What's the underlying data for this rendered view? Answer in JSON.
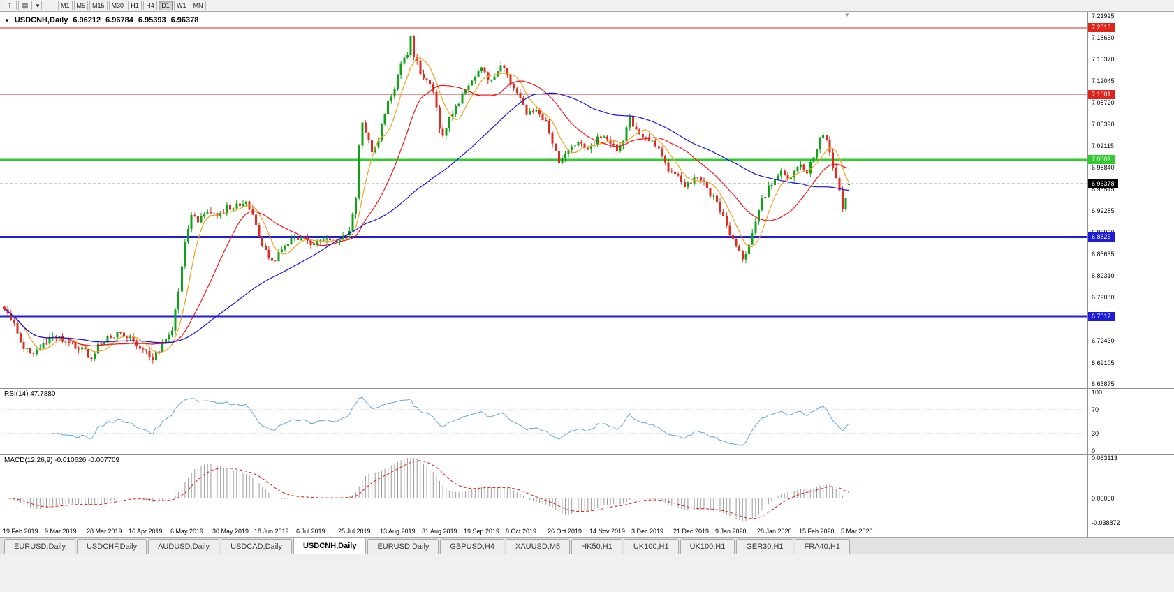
{
  "toolbar": {
    "t_button": "T",
    "mode_glyph": "▤",
    "dropdown_glyph": "▾",
    "timeframes": [
      "M1",
      "M5",
      "M15",
      "M30",
      "H1",
      "H4",
      "D1",
      "W1",
      "MN"
    ],
    "active_timeframe": "D1"
  },
  "chart": {
    "collapse_glyph": "▼",
    "shift_marker_glyph": "▼",
    "title": "USDCNH,Daily",
    "ohlc": {
      "open": "6.96212",
      "high": "6.96784",
      "low": "6.95393",
      "close": "6.96378"
    },
    "price_axis_labels": [
      "7.21925",
      "7.18660",
      "7.15370",
      "7.12045",
      "7.08720",
      "7.05390",
      "7.02115",
      "6.98840",
      "6.95515",
      "6.92285",
      "6.88960",
      "6.85635",
      "6.82310",
      "6.79080",
      "6.75755",
      "6.72430",
      "6.69105",
      "6.65875"
    ],
    "hlines": [
      {
        "price": 7.2013,
        "label": "7.2013",
        "color": "#df241b",
        "width": 1
      },
      {
        "price": 7.1001,
        "label": "7.1001",
        "color": "#df241b",
        "width": 1
      },
      {
        "price": 7.0002,
        "label": "7.0002",
        "color": "#2ecc2e",
        "width": 3
      },
      {
        "price": 6.8825,
        "label": "6.8825",
        "color": "#1d1dd8",
        "width": 3
      },
      {
        "price": 6.7617,
        "label": "6.7617",
        "color": "#1d1dd8",
        "width": 3
      }
    ],
    "current_price": {
      "value": 6.96378,
      "label": "6.96378",
      "color": "#000000"
    },
    "date_labels": [
      "19 Feb 2019",
      "9 Mar 2019",
      "28 Mar 2019",
      "16 Apr 2019",
      "6 May 2019",
      "30 May 2019",
      "18 Jun 2019",
      "6 Jul 2019",
      "25 Jul 2019",
      "13 Aug 2019",
      "31 Aug 2019",
      "19 Sep 2019",
      "8 Oct 2019",
      "26 Oct 2019",
      "14 Nov 2019",
      "3 Dec 2019",
      "21 Dec 2019",
      "9 Jan 2020",
      "28 Jan 2020",
      "15 Feb 2020",
      "5 Mar 2020"
    ]
  },
  "rsi": {
    "label": "RSI(14) 47.7880",
    "value": 47.788,
    "period": 14,
    "axis_labels": [
      "100",
      "70",
      "30",
      "0"
    ],
    "axis_values": [
      100,
      70,
      30,
      0
    ],
    "levels": [
      70,
      30
    ],
    "color": "#5aa7dc"
  },
  "macd": {
    "label": "MACD(12,26,9) -0.010626 -0.007709",
    "main_value": -0.010626,
    "signal_value": -0.007709,
    "fast": 12,
    "slow": 26,
    "signal": 9,
    "axis_max": {
      "label": "0.063113",
      "value": 0.063113
    },
    "axis_zero": {
      "label": "0.00000",
      "value": 0
    },
    "axis_min": {
      "label": "-0.038872",
      "value": -0.038872
    },
    "hist_color": "#9b9b9b",
    "signal_color": "#e01510"
  },
  "tabs": [
    "EURUSD,Daily",
    "USDCHF,Daily",
    "AUDUSD,Daily",
    "USDCAD,Daily",
    "USDCNH,Daily",
    "EURUSD,Daily",
    "GBPUSD,H4",
    "XAUUSD,M5",
    "HK50,H1",
    "UK100,H1",
    "UK100,H1",
    "GER30,H1",
    "FRA40,H1"
  ],
  "active_tab_index": 4,
  "chart_data": {
    "type": "candlestick",
    "symbol": "USDCNH",
    "timeframe": "Daily",
    "candles_total": 263,
    "price_axis_min": 6.65875,
    "price_axis_max": 7.21925,
    "final_ohlc": [
      6.96212,
      6.96784,
      6.95393,
      6.96378
    ],
    "close_path": [
      [
        0,
        6.776
      ],
      [
        3,
        6.748
      ],
      [
        6,
        6.715
      ],
      [
        9,
        6.703
      ],
      [
        12,
        6.722
      ],
      [
        16,
        6.732
      ],
      [
        20,
        6.72
      ],
      [
        24,
        6.712
      ],
      [
        27,
        6.698
      ],
      [
        29,
        6.716
      ],
      [
        32,
        6.73
      ],
      [
        36,
        6.734
      ],
      [
        40,
        6.726
      ],
      [
        43,
        6.712
      ],
      [
        46,
        6.697
      ],
      [
        49,
        6.718
      ],
      [
        52,
        6.742
      ],
      [
        54,
        6.8
      ],
      [
        56,
        6.872
      ],
      [
        58,
        6.915
      ],
      [
        60,
        6.908
      ],
      [
        63,
        6.922
      ],
      [
        66,
        6.912
      ],
      [
        69,
        6.927
      ],
      [
        72,
        6.93
      ],
      [
        75,
        6.941
      ],
      [
        77,
        6.915
      ],
      [
        80,
        6.872
      ],
      [
        83,
        6.843
      ],
      [
        86,
        6.862
      ],
      [
        89,
        6.878
      ],
      [
        92,
        6.88
      ],
      [
        95,
        6.872
      ],
      [
        98,
        6.878
      ],
      [
        101,
        6.882
      ],
      [
        104,
        6.879
      ],
      [
        107,
        6.89
      ],
      [
        109,
        6.947
      ],
      [
        110,
        7.02
      ],
      [
        111,
        7.058
      ],
      [
        112,
        7.045
      ],
      [
        114,
        7.008
      ],
      [
        116,
        7.03
      ],
      [
        117,
        7.058
      ],
      [
        119,
        7.088
      ],
      [
        121,
        7.11
      ],
      [
        123,
        7.148
      ],
      [
        125,
        7.163
      ],
      [
        126,
        7.185
      ],
      [
        127,
        7.16
      ],
      [
        129,
        7.135
      ],
      [
        131,
        7.12
      ],
      [
        133,
        7.105
      ],
      [
        135,
        7.052
      ],
      [
        136,
        7.038
      ],
      [
        138,
        7.062
      ],
      [
        140,
        7.082
      ],
      [
        142,
        7.098
      ],
      [
        144,
        7.112
      ],
      [
        146,
        7.125
      ],
      [
        148,
        7.138
      ],
      [
        150,
        7.122
      ],
      [
        152,
        7.128
      ],
      [
        154,
        7.148
      ],
      [
        156,
        7.128
      ],
      [
        158,
        7.108
      ],
      [
        160,
        7.092
      ],
      [
        162,
        7.072
      ],
      [
        164,
        7.078
      ],
      [
        166,
        7.072
      ],
      [
        168,
        7.058
      ],
      [
        170,
        7.025
      ],
      [
        172,
        6.998
      ],
      [
        174,
        7.012
      ],
      [
        176,
        7.022
      ],
      [
        178,
        7.028
      ],
      [
        180,
        7.022
      ],
      [
        182,
        7.018
      ],
      [
        184,
        7.035
      ],
      [
        186,
        7.032
      ],
      [
        188,
        7.022
      ],
      [
        190,
        7.018
      ],
      [
        192,
        7.032
      ],
      [
        194,
        7.062
      ],
      [
        195,
        7.048
      ],
      [
        197,
        7.038
      ],
      [
        199,
        7.032
      ],
      [
        201,
        7.028
      ],
      [
        203,
        7.018
      ],
      [
        205,
        6.995
      ],
      [
        207,
        6.978
      ],
      [
        209,
        6.972
      ],
      [
        211,
        6.962
      ],
      [
        213,
        6.968
      ],
      [
        215,
        6.972
      ],
      [
        217,
        6.962
      ],
      [
        219,
        6.948
      ],
      [
        221,
        6.935
      ],
      [
        223,
        6.915
      ],
      [
        225,
        6.885
      ],
      [
        227,
        6.868
      ],
      [
        229,
        6.852
      ],
      [
        231,
        6.868
      ],
      [
        233,
        6.902
      ],
      [
        235,
        6.938
      ],
      [
        237,
        6.958
      ],
      [
        239,
        6.972
      ],
      [
        241,
        6.985
      ],
      [
        243,
        6.972
      ],
      [
        245,
        6.982
      ],
      [
        247,
        6.992
      ],
      [
        249,
        6.982
      ],
      [
        251,
        7.005
      ],
      [
        253,
        7.035
      ],
      [
        254,
        7.042
      ],
      [
        256,
        7.01
      ],
      [
        258,
        6.972
      ],
      [
        260,
        6.928
      ],
      [
        261,
        6.944
      ],
      [
        262,
        6.96378
      ]
    ],
    "moving_averages": [
      {
        "name": "ma-fast",
        "period": 7,
        "color": "#f2a21a"
      },
      {
        "name": "ma-medium",
        "period": 20,
        "color": "#f01414"
      },
      {
        "name": "ma-slow",
        "period": 55,
        "color": "#1414e6"
      }
    ],
    "colors": {
      "up": "#0fa318",
      "down": "#e22b1e"
    }
  }
}
